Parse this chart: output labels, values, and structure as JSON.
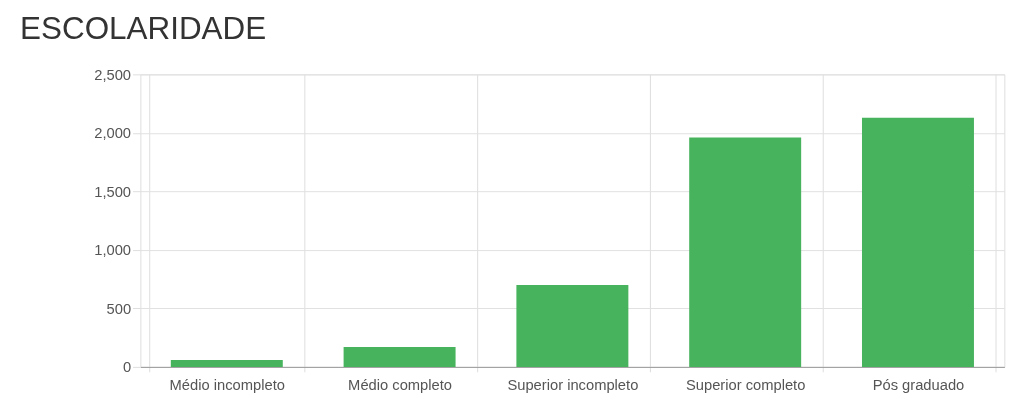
{
  "chart_data": {
    "type": "bar",
    "title": "ESCOLARIDADE",
    "categories": [
      "Médio incompleto",
      "Médio completo",
      "Superior incompleto",
      "Superior completo",
      "Pós graduado"
    ],
    "values": [
      60,
      170,
      700,
      1960,
      2130
    ],
    "color": "#47b35d",
    "ylim": [
      0,
      2500
    ],
    "yticks": [
      0,
      500,
      {
        "value": 1000,
        "label": "1,000"
      },
      {
        "value": 1500,
        "label": "1,500"
      },
      {
        "value": 2000,
        "label": "2,000"
      },
      {
        "value": 2500,
        "label": "2,500"
      }
    ],
    "grid": true
  }
}
